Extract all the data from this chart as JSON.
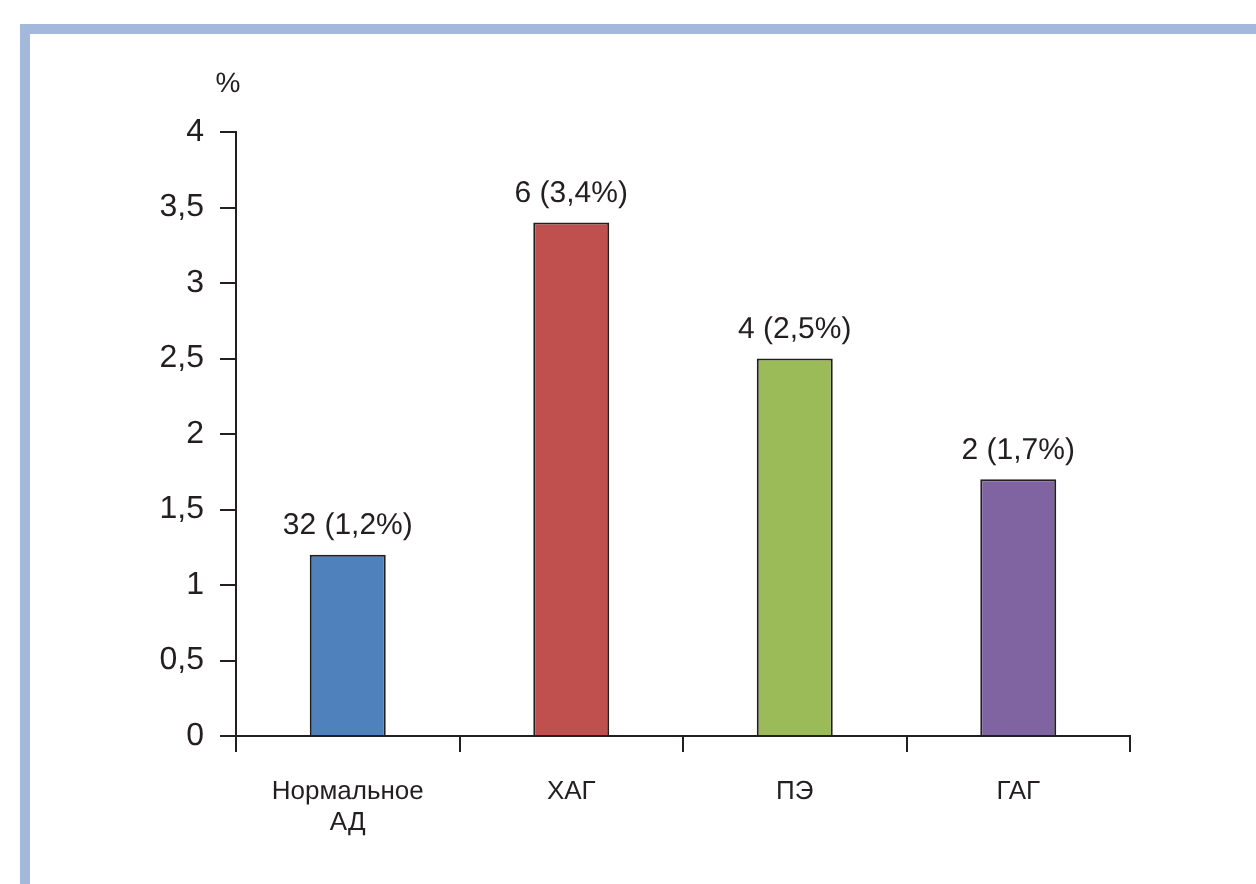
{
  "chart_data": {
    "type": "bar",
    "ylabel": "%",
    "categories": [
      "Нормальное АД",
      "ХАГ",
      "ПЭ",
      "ГАГ"
    ],
    "values": [
      1.2,
      3.4,
      2.5,
      1.7
    ],
    "colors": [
      "#4f81bd",
      "#c0504d",
      "#9bbb59",
      "#8064a2"
    ],
    "value_labels": [
      "32 (1,2%)",
      "6 (3,4%)",
      "4 (2,5%)",
      "2 (1,7%)"
    ],
    "ylim": [
      0,
      4
    ],
    "yticks": [
      0,
      {
        "value": 0.5,
        "label": "0,5"
      },
      1,
      {
        "value": 1.5,
        "label": "1,5"
      },
      2,
      {
        "value": 2.5,
        "label": "2,5"
      },
      3,
      {
        "value": 3.5,
        "label": "3,5"
      },
      4
    ]
  }
}
